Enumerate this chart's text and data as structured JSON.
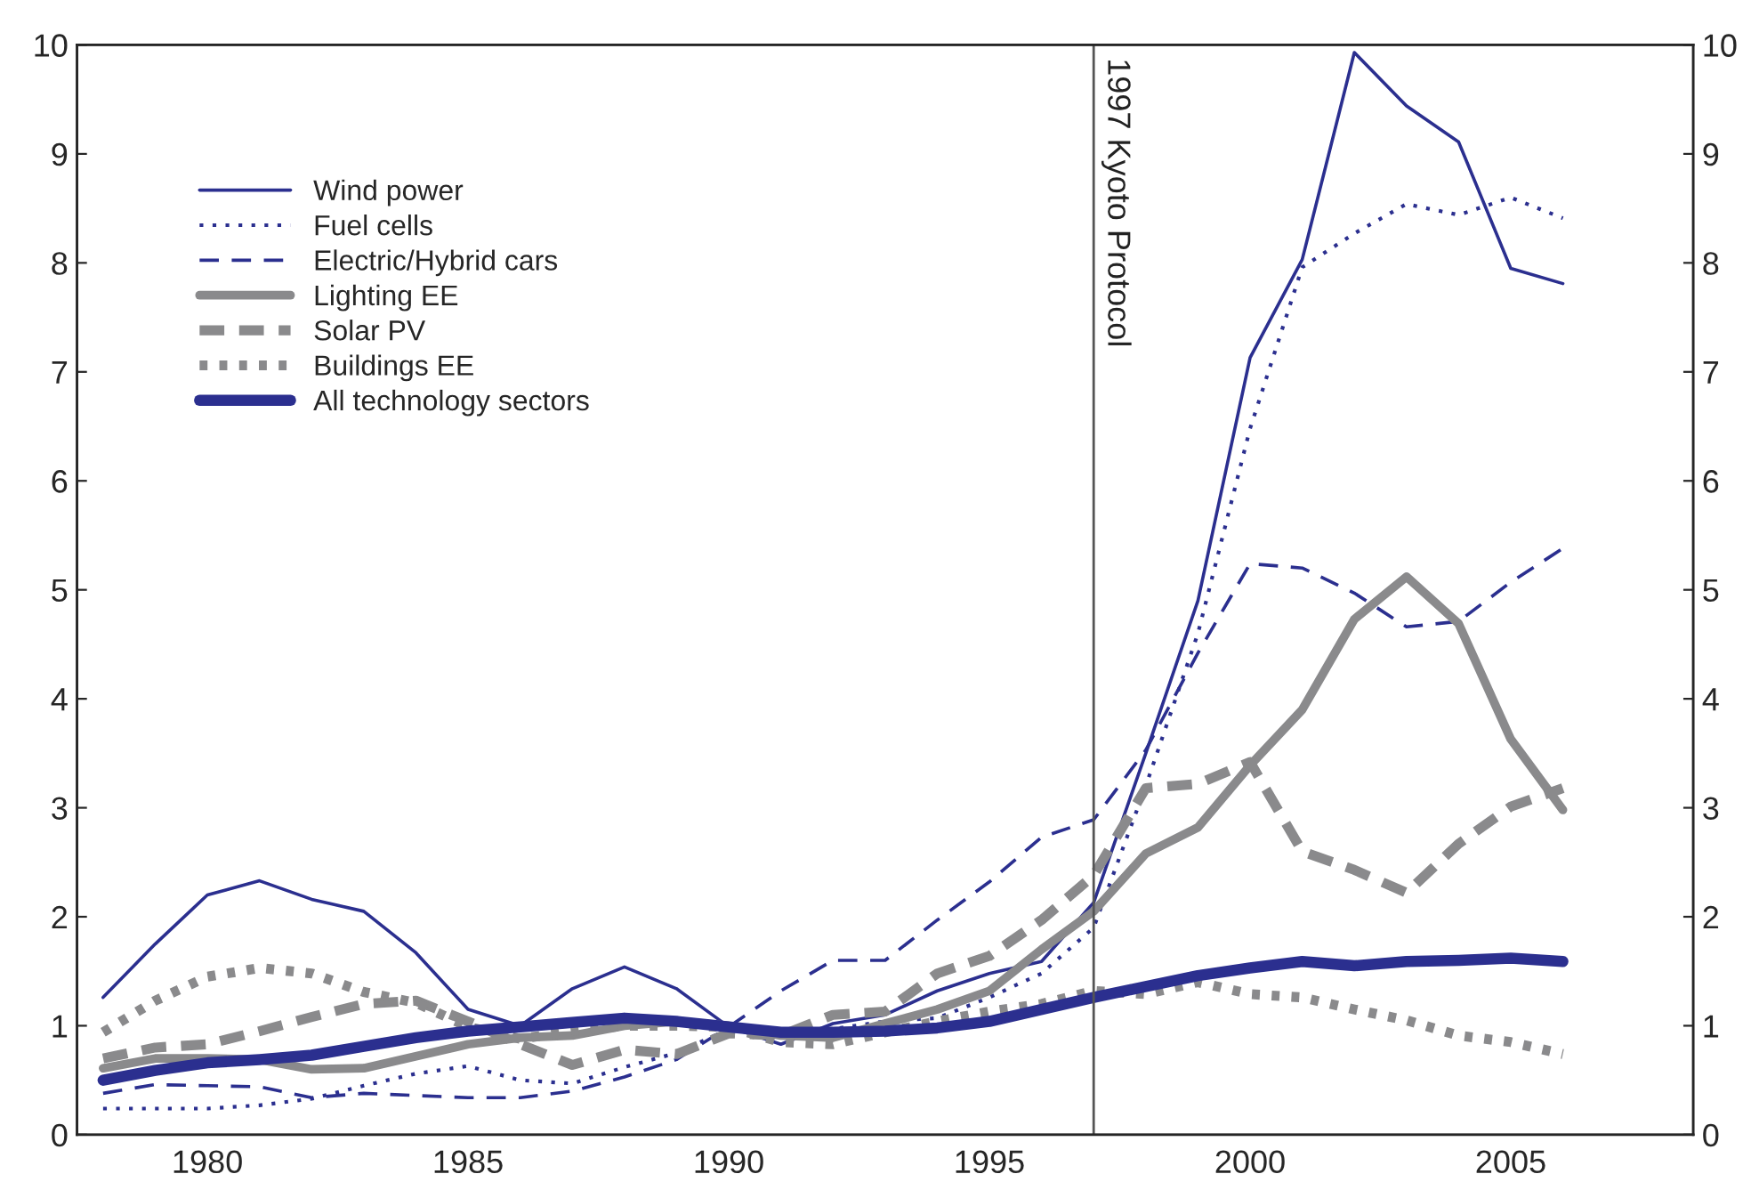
{
  "chart_data": {
    "type": "line",
    "x": [
      1978,
      1979,
      1980,
      1981,
      1982,
      1983,
      1984,
      1985,
      1986,
      1987,
      1988,
      1989,
      1990,
      1991,
      1992,
      1993,
      1994,
      1995,
      1996,
      1997,
      1998,
      1999,
      2000,
      2001,
      2002,
      2003,
      2004,
      2005,
      2006
    ],
    "series": [
      {
        "name": "Wind power",
        "color": "#2b2f8f",
        "line_style": "solid",
        "values": [
          1.26,
          1.75,
          2.2,
          2.33,
          2.16,
          2.05,
          1.67,
          1.15,
          1.0,
          1.34,
          1.54,
          1.34,
          0.99,
          0.83,
          1.02,
          1.1,
          1.32,
          1.48,
          1.59,
          2.13,
          3.5,
          4.9,
          7.13,
          8.03,
          9.93,
          9.44,
          9.11,
          7.95,
          7.81
        ]
      },
      {
        "name": "Fuel cells",
        "color": "#2b2f8f",
        "line_style": "dotted",
        "values": [
          0.24,
          0.24,
          0.24,
          0.27,
          0.33,
          0.45,
          0.56,
          0.63,
          0.5,
          0.47,
          0.62,
          0.75,
          0.97,
          0.94,
          0.97,
          1.04,
          1.07,
          1.26,
          1.48,
          1.9,
          3.2,
          4.6,
          6.48,
          7.96,
          8.27,
          8.54,
          8.44,
          8.6,
          8.41
        ]
      },
      {
        "name": "Electric/Hybrid cars",
        "color": "#2b2f8f",
        "line_style": "dashed",
        "values": [
          0.38,
          0.46,
          0.45,
          0.44,
          0.34,
          0.38,
          0.36,
          0.34,
          0.34,
          0.4,
          0.53,
          0.69,
          0.99,
          1.32,
          1.6,
          1.6,
          1.97,
          2.32,
          2.73,
          2.89,
          3.53,
          4.42,
          5.24,
          5.2,
          4.97,
          4.66,
          4.71,
          5.07,
          5.38
        ]
      },
      {
        "name": "Lighting EE",
        "color": "#8a8a8c",
        "line_style": "solid",
        "values": [
          0.61,
          0.7,
          0.7,
          0.69,
          0.6,
          0.61,
          0.72,
          0.83,
          0.89,
          0.91,
          1.0,
          1.04,
          1.0,
          0.91,
          0.89,
          1.02,
          1.15,
          1.32,
          1.7,
          2.05,
          2.58,
          2.82,
          3.39,
          3.9,
          4.73,
          5.12,
          4.69,
          3.63,
          2.98
        ]
      },
      {
        "name": "Solar PV",
        "color": "#8a8a8c",
        "line_style": "dashed",
        "values": [
          0.7,
          0.8,
          0.83,
          0.95,
          1.08,
          1.2,
          1.23,
          1.04,
          0.83,
          0.64,
          0.78,
          0.74,
          0.93,
          0.91,
          1.1,
          1.13,
          1.48,
          1.64,
          1.97,
          2.38,
          3.18,
          3.22,
          3.42,
          2.6,
          2.43,
          2.22,
          2.67,
          3.01,
          3.18
        ]
      },
      {
        "name": "Buildings EE",
        "color": "#8a8a8c",
        "line_style": "dotted",
        "values": [
          0.94,
          1.23,
          1.45,
          1.53,
          1.48,
          1.31,
          1.21,
          0.99,
          0.88,
          0.95,
          1.0,
          1.0,
          0.99,
          0.85,
          0.83,
          0.94,
          1.04,
          1.13,
          1.2,
          1.32,
          1.29,
          1.4,
          1.29,
          1.26,
          1.15,
          1.05,
          0.91,
          0.85,
          0.74
        ]
      },
      {
        "name": "All technology sectors",
        "color": "#2b2f8f",
        "line_style": "solid",
        "values": [
          0.5,
          0.59,
          0.66,
          0.69,
          0.73,
          0.81,
          0.89,
          0.95,
          0.99,
          1.03,
          1.07,
          1.04,
          0.99,
          0.94,
          0.94,
          0.95,
          0.98,
          1.04,
          1.15,
          1.26,
          1.36,
          1.46,
          1.53,
          1.59,
          1.55,
          1.59,
          1.6,
          1.62,
          1.59
        ]
      }
    ],
    "xlim": [
      1977.5,
      2008.5
    ],
    "xticks": [
      {
        "value": 1980,
        "label": "1980"
      },
      {
        "value": 1985,
        "label": "1985"
      },
      {
        "value": 1990,
        "label": "1990"
      },
      {
        "value": 1995,
        "label": "1995"
      },
      {
        "value": 2000,
        "label": "2000"
      },
      {
        "value": 2005,
        "label": "2005"
      }
    ],
    "ylim": [
      0,
      10
    ],
    "yticks": [
      0,
      1,
      2,
      3,
      4,
      5,
      6,
      7,
      8,
      9,
      10
    ],
    "y2lim": [
      0,
      10
    ],
    "y2ticks": [
      0,
      1,
      2,
      3,
      4,
      5,
      6,
      7,
      8,
      9,
      10
    ],
    "ref_lines": [
      {
        "axis": "x",
        "value": 1997,
        "label": "1997 Kyoto Protocol",
        "color": "#555555",
        "line_style": "solid"
      }
    ],
    "legend": "top left",
    "grid": false,
    "marker": "none"
  }
}
